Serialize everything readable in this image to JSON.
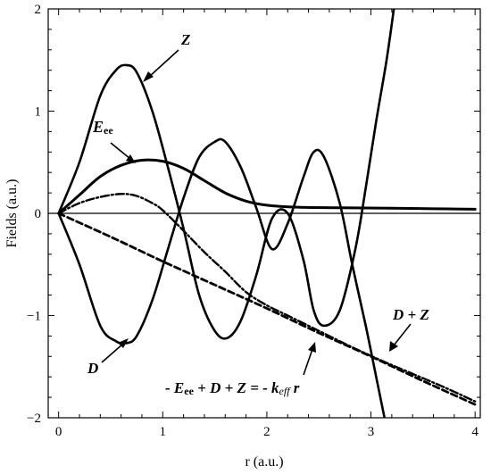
{
  "chart_data": {
    "type": "line",
    "xlabel": "r (a.u.)",
    "ylabel": "Fields (a.u.)",
    "xlim": [
      -0.1,
      4.05
    ],
    "ylim": [
      -2,
      2
    ],
    "x_ticks": [
      "0",
      "1",
      "2",
      "3",
      "4"
    ],
    "y_ticks": [
      "-2",
      "-1",
      "0",
      "1",
      "2"
    ],
    "grid": false,
    "series": [
      {
        "key": "Z",
        "style": "solid",
        "points": [
          [
            0,
            0
          ],
          [
            0.2,
            0.5
          ],
          [
            0.4,
            1.15
          ],
          [
            0.55,
            1.4
          ],
          [
            0.65,
            1.45
          ],
          [
            0.75,
            1.38
          ],
          [
            0.9,
            1.0
          ],
          [
            1.05,
            0.45
          ],
          [
            1.2,
            -0.15
          ],
          [
            1.35,
            -0.8
          ],
          [
            1.5,
            -1.15
          ],
          [
            1.62,
            -1.22
          ],
          [
            1.75,
            -1.05
          ],
          [
            1.9,
            -0.6
          ],
          [
            2.05,
            -0.05
          ],
          [
            2.2,
            0.0
          ],
          [
            2.35,
            -0.45
          ],
          [
            2.45,
            -0.95
          ],
          [
            2.55,
            -1.1
          ],
          [
            2.7,
            -0.95
          ],
          [
            2.85,
            -0.35
          ],
          [
            2.95,
            0.25
          ],
          [
            3.05,
            0.9
          ],
          [
            3.15,
            1.5
          ],
          [
            3.22,
            2.0
          ]
        ]
      },
      {
        "key": "D",
        "style": "solid",
        "points": [
          [
            0,
            0
          ],
          [
            0.2,
            -0.5
          ],
          [
            0.4,
            -1.1
          ],
          [
            0.55,
            -1.25
          ],
          [
            0.65,
            -1.27
          ],
          [
            0.75,
            -1.2
          ],
          [
            0.9,
            -0.85
          ],
          [
            1.05,
            -0.35
          ],
          [
            1.2,
            0.15
          ],
          [
            1.35,
            0.55
          ],
          [
            1.5,
            0.7
          ],
          [
            1.6,
            0.7
          ],
          [
            1.75,
            0.45
          ],
          [
            1.9,
            0.05
          ],
          [
            2.05,
            -0.35
          ],
          [
            2.2,
            -0.1
          ],
          [
            2.35,
            0.35
          ],
          [
            2.45,
            0.6
          ],
          [
            2.55,
            0.55
          ],
          [
            2.7,
            0.1
          ],
          [
            2.82,
            -0.5
          ],
          [
            2.95,
            -1.1
          ],
          [
            3.05,
            -1.6
          ],
          [
            3.13,
            -2.0
          ]
        ]
      },
      {
        "key": "Eee",
        "style": "solid-thick",
        "points": [
          [
            0,
            0
          ],
          [
            0.2,
            0.18
          ],
          [
            0.4,
            0.36
          ],
          [
            0.6,
            0.47
          ],
          [
            0.8,
            0.52
          ],
          [
            1.0,
            0.51
          ],
          [
            1.2,
            0.44
          ],
          [
            1.4,
            0.32
          ],
          [
            1.6,
            0.2
          ],
          [
            1.8,
            0.12
          ],
          [
            2.0,
            0.08
          ],
          [
            2.3,
            0.06
          ],
          [
            2.7,
            0.055
          ],
          [
            3.2,
            0.05
          ],
          [
            3.6,
            0.045
          ],
          [
            4.0,
            0.04
          ]
        ]
      },
      {
        "key": "D+Z",
        "style": "dashed",
        "points": [
          [
            0,
            0
          ],
          [
            0.5,
            -0.23
          ],
          [
            1.0,
            -0.47
          ],
          [
            1.5,
            -0.7
          ],
          [
            2.0,
            -0.93
          ],
          [
            2.5,
            -1.17
          ],
          [
            3.0,
            -1.4
          ],
          [
            3.5,
            -1.64
          ],
          [
            4.0,
            -1.87
          ]
        ]
      },
      {
        "key": "-keff r",
        "style": "dash-dot",
        "points": [
          [
            0,
            0
          ],
          [
            0.2,
            0.1
          ],
          [
            0.4,
            0.16
          ],
          [
            0.6,
            0.19
          ],
          [
            0.75,
            0.17
          ],
          [
            0.9,
            0.1
          ],
          [
            1.0,
            0.03
          ],
          [
            1.2,
            -0.17
          ],
          [
            1.4,
            -0.38
          ],
          [
            1.6,
            -0.57
          ],
          [
            1.8,
            -0.77
          ],
          [
            2.0,
            -0.9
          ],
          [
            2.2,
            -1.0
          ],
          [
            2.5,
            -1.15
          ],
          [
            2.8,
            -1.3
          ],
          [
            3.1,
            -1.44
          ],
          [
            3.4,
            -1.57
          ],
          [
            3.7,
            -1.7
          ],
          [
            4.0,
            -1.84
          ]
        ]
      }
    ],
    "annotations": {
      "z_label": "Z",
      "eee_script": "E",
      "eee_sub": "ee",
      "d_label": "D",
      "dz_label": "D + Z",
      "eq_part1": "- E",
      "eq_part1_sub": "ee",
      "eq_part2": " + D + Z = - k",
      "eq_part2_sub": "eff",
      "eq_part3": " r"
    }
  }
}
